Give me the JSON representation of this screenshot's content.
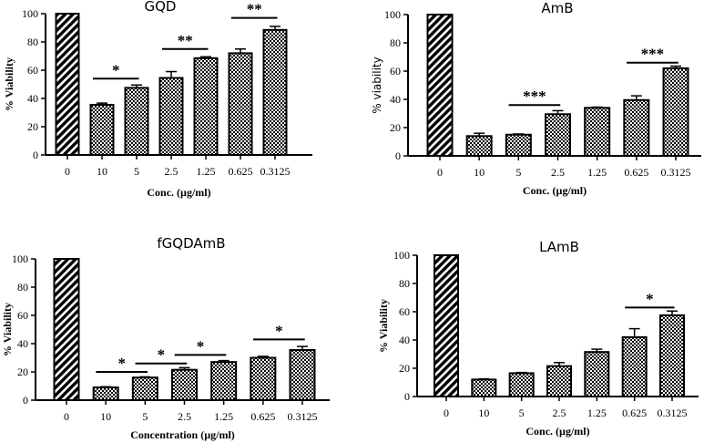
{
  "chart_data": [
    {
      "type": "bar",
      "title": "GQD",
      "xlabel": "Conc. (µg/ml)",
      "ylabel": "% Viability",
      "ylim": [
        0,
        100
      ],
      "yticks": [
        0,
        20,
        40,
        60,
        80,
        100
      ],
      "categories": [
        "0",
        "10",
        "5",
        "2.5",
        "1.25",
        "0.625",
        "0.3125"
      ],
      "values": [
        100,
        35.5,
        47.5,
        54.5,
        68.5,
        72,
        88.5
      ],
      "errors": [
        0,
        1.2,
        2,
        4.5,
        1,
        3,
        2.5
      ],
      "significance": [
        {
          "from": 1,
          "to": 2,
          "y": 54,
          "label": "*"
        },
        {
          "from": 3,
          "to": 4,
          "y": 75,
          "label": "**"
        },
        {
          "from": 5,
          "to": 6,
          "y": 97,
          "label": "**"
        }
      ]
    },
    {
      "type": "bar",
      "title": "AmB",
      "xlabel": "Conc. (µg/ml)",
      "ylabel": "% viability",
      "ylim": [
        0,
        100
      ],
      "yticks": [
        0,
        20,
        40,
        60,
        80,
        100
      ],
      "categories": [
        "0",
        "10",
        "5",
        "2.5",
        "1.25",
        "0.625",
        "0.3125"
      ],
      "values": [
        100,
        14,
        15,
        29.5,
        34,
        39.5,
        62
      ],
      "errors": [
        0,
        2,
        0.5,
        2.5,
        0.5,
        3,
        1.5
      ],
      "significance": [
        {
          "from": 2,
          "to": 3,
          "y": 36,
          "label": "***"
        },
        {
          "from": 5,
          "to": 6,
          "y": 66,
          "label": "***"
        }
      ]
    },
    {
      "type": "bar",
      "title": "fGQDAmB",
      "xlabel": "Concentration (µg/ml)",
      "ylabel": "% Viability",
      "ylim": [
        0,
        100
      ],
      "yticks": [
        0,
        20,
        40,
        60,
        80,
        100
      ],
      "categories": [
        "0",
        "10",
        "5",
        "2.5",
        "1.25",
        "0.625",
        "0.3125"
      ],
      "values": [
        100,
        9,
        16,
        21.5,
        27,
        30,
        35.5
      ],
      "errors": [
        0,
        0.5,
        0.5,
        1.5,
        1,
        1,
        2.5
      ],
      "significance": [
        {
          "from": 1,
          "to": 2,
          "y": 20,
          "label": "*"
        },
        {
          "from": 2,
          "to": 3,
          "y": 26,
          "label": "*"
        },
        {
          "from": 3,
          "to": 4,
          "y": 32,
          "label": "*"
        },
        {
          "from": 5,
          "to": 6,
          "y": 43,
          "label": "*"
        }
      ]
    },
    {
      "type": "bar",
      "title": "LAmB",
      "xlabel": "Conc. (µg/ml)",
      "ylabel": "% Viability",
      "ylim": [
        0,
        100
      ],
      "yticks": [
        0,
        20,
        40,
        60,
        80,
        100
      ],
      "categories": [
        "0",
        "10",
        "5",
        "2.5",
        "1.25",
        "0.625",
        "0.3125"
      ],
      "values": [
        100,
        12,
        16.5,
        21.5,
        31.5,
        42,
        57.5
      ],
      "errors": [
        0,
        0.5,
        0.5,
        2.5,
        2,
        6,
        3
      ],
      "significance": [
        {
          "from": 5,
          "to": 6,
          "y": 63,
          "label": "*"
        }
      ]
    }
  ]
}
